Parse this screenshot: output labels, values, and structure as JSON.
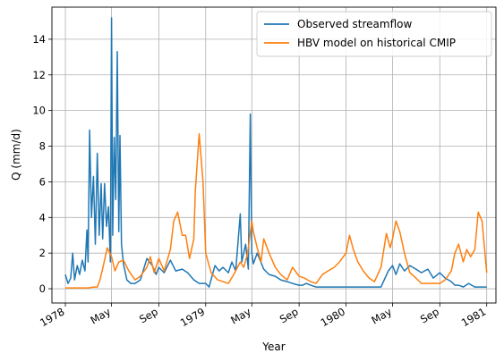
{
  "chart_data": {
    "type": "line",
    "xlabel": "Year",
    "ylabel": "Q (mm/d)",
    "xlim": [
      "1977-11-27",
      "1981-01-25"
    ],
    "ylim": [
      -0.8,
      15.8
    ],
    "grid": true,
    "legend_position": "top-right",
    "x_ticks": [
      {
        "date": "1978-01-01",
        "label": "1978"
      },
      {
        "date": "1978-05-01",
        "label": "May"
      },
      {
        "date": "1978-09-01",
        "label": "Sep"
      },
      {
        "date": "1979-01-01",
        "label": "1979"
      },
      {
        "date": "1979-05-01",
        "label": "May"
      },
      {
        "date": "1979-09-01",
        "label": "Sep"
      },
      {
        "date": "1980-01-01",
        "label": "1980"
      },
      {
        "date": "1980-05-01",
        "label": "May"
      },
      {
        "date": "1980-09-01",
        "label": "Sep"
      },
      {
        "date": "1981-01-01",
        "label": "1981"
      }
    ],
    "y_ticks": [
      {
        "value": 0,
        "label": "0"
      },
      {
        "value": 2,
        "label": "2"
      },
      {
        "value": 4,
        "label": "4"
      },
      {
        "value": 6,
        "label": "6"
      },
      {
        "value": 8,
        "label": "8"
      },
      {
        "value": 10,
        "label": "10"
      },
      {
        "value": 12,
        "label": "12"
      },
      {
        "value": 14,
        "label": "14"
      }
    ],
    "series": [
      {
        "name": "Observed streamflow",
        "color": "#1f77b4",
        "x": [
          "1978-01-01",
          "1978-01-08",
          "1978-01-15",
          "1978-01-20",
          "1978-01-25",
          "1978-02-01",
          "1978-02-07",
          "1978-02-14",
          "1978-02-21",
          "1978-02-26",
          "1978-03-01",
          "1978-03-05",
          "1978-03-10",
          "1978-03-15",
          "1978-03-20",
          "1978-03-25",
          "1978-03-30",
          "1978-04-04",
          "1978-04-08",
          "1978-04-13",
          "1978-04-18",
          "1978-04-23",
          "1978-04-28",
          "1978-05-01",
          "1978-05-04",
          "1978-05-08",
          "1978-05-12",
          "1978-05-16",
          "1978-05-20",
          "1978-05-23",
          "1978-05-27",
          "1978-06-01",
          "1978-06-10",
          "1978-06-20",
          "1978-07-01",
          "1978-07-15",
          "1978-08-01",
          "1978-08-15",
          "1978-08-25",
          "1978-09-01",
          "1978-09-15",
          "1978-10-01",
          "1978-10-15",
          "1978-11-01",
          "1978-11-15",
          "1978-12-01",
          "1978-12-15",
          "1979-01-01",
          "1979-01-10",
          "1979-01-25",
          "1979-02-05",
          "1979-02-15",
          "1979-03-01",
          "1979-03-10",
          "1979-03-20",
          "1979-04-01",
          "1979-04-05",
          "1979-04-15",
          "1979-04-22",
          "1979-04-27",
          "1979-05-01",
          "1979-05-05",
          "1979-05-15",
          "1979-06-01",
          "1979-06-15",
          "1979-07-01",
          "1979-07-15",
          "1979-08-01",
          "1979-08-15",
          "1979-09-01",
          "1979-09-10",
          "1979-09-20",
          "1979-10-01",
          "1979-10-15",
          "1979-11-01",
          "1979-11-15",
          "1979-12-01",
          "1980-01-01",
          "1980-02-01",
          "1980-03-01",
          "1980-04-01",
          "1980-04-20",
          "1980-05-01",
          "1980-05-10",
          "1980-05-20",
          "1980-06-01",
          "1980-06-15",
          "1980-07-01",
          "1980-07-15",
          "1980-08-01",
          "1980-08-15",
          "1980-09-01",
          "1980-09-15",
          "1980-10-01",
          "1980-10-10",
          "1980-10-20",
          "1980-11-01",
          "1980-11-15",
          "1980-12-01",
          "1980-12-15",
          "1981-01-01"
        ],
        "y": [
          0.8,
          0.3,
          0.6,
          2.0,
          0.5,
          1.3,
          0.8,
          1.6,
          1.0,
          3.3,
          1.5,
          8.9,
          4.0,
          6.3,
          2.5,
          7.6,
          3.0,
          5.9,
          2.8,
          5.9,
          3.5,
          4.6,
          1.5,
          15.2,
          3.0,
          8.5,
          5.0,
          13.3,
          3.2,
          8.6,
          2.5,
          1.4,
          0.5,
          0.3,
          0.3,
          0.5,
          1.7,
          1.3,
          0.8,
          1.2,
          0.9,
          1.6,
          1.0,
          1.1,
          0.9,
          0.5,
          0.3,
          0.3,
          0.1,
          1.3,
          1.0,
          1.2,
          0.9,
          1.5,
          1.0,
          4.2,
          1.5,
          2.5,
          1.1,
          9.8,
          2.0,
          1.4,
          2.0,
          1.1,
          0.8,
          0.7,
          0.5,
          0.4,
          0.3,
          0.2,
          0.2,
          0.3,
          0.2,
          0.1,
          0.1,
          0.1,
          0.1,
          0.1,
          0.1,
          0.1,
          0.1,
          1.0,
          1.3,
          0.8,
          1.4,
          1.0,
          1.3,
          1.1,
          0.9,
          1.1,
          0.6,
          0.9,
          0.6,
          0.4,
          0.2,
          0.2,
          0.1,
          0.3,
          0.1,
          0.1,
          0.1
        ]
      },
      {
        "name": "HBV model on historical CMIP",
        "color": "#ff7f0e",
        "x": [
          "1978-01-01",
          "1978-01-15",
          "1978-02-01",
          "1978-02-15",
          "1978-03-01",
          "1978-03-15",
          "1978-03-25",
          "1978-04-01",
          "1978-04-10",
          "1978-04-20",
          "1978-05-01",
          "1978-05-10",
          "1978-05-20",
          "1978-06-01",
          "1978-06-15",
          "1978-07-01",
          "1978-07-15",
          "1978-08-01",
          "1978-08-10",
          "1978-08-20",
          "1978-09-01",
          "1978-09-15",
          "1978-10-01",
          "1978-10-10",
          "1978-10-20",
          "1978-11-01",
          "1978-11-10",
          "1978-11-20",
          "1978-12-01",
          "1978-12-05",
          "1978-12-15",
          "1978-12-25",
          "1979-01-01",
          "1979-01-15",
          "1979-02-01",
          "1979-02-15",
          "1979-03-01",
          "1979-03-15",
          "1979-04-01",
          "1979-04-10",
          "1979-04-20",
          "1979-05-01",
          "1979-05-05",
          "1979-05-15",
          "1979-05-25",
          "1979-06-01",
          "1979-06-15",
          "1979-07-01",
          "1979-07-15",
          "1979-08-01",
          "1979-08-15",
          "1979-09-01",
          "1979-09-15",
          "1979-10-01",
          "1979-10-15",
          "1979-11-01",
          "1979-11-15",
          "1979-12-01",
          "1979-12-15",
          "1980-01-01",
          "1980-01-10",
          "1980-01-20",
          "1980-02-01",
          "1980-02-15",
          "1980-03-01",
          "1980-03-15",
          "1980-04-01",
          "1980-04-15",
          "1980-04-25",
          "1980-05-01",
          "1980-05-10",
          "1980-05-20",
          "1980-06-01",
          "1980-06-15",
          "1980-07-01",
          "1980-07-15",
          "1980-08-01",
          "1980-08-15",
          "1980-09-01",
          "1980-09-15",
          "1980-10-01",
          "1980-10-10",
          "1980-10-20",
          "1980-11-01",
          "1980-11-10",
          "1980-11-20",
          "1980-12-01",
          "1980-12-10",
          "1980-12-20",
          "1981-01-01"
        ],
        "y": [
          0.05,
          0.05,
          0.05,
          0.05,
          0.05,
          0.1,
          0.1,
          0.5,
          1.3,
          2.3,
          1.8,
          1.0,
          1.5,
          1.6,
          1.0,
          0.5,
          0.7,
          1.2,
          1.8,
          0.9,
          1.7,
          1.0,
          2.2,
          3.8,
          4.3,
          3.0,
          3.0,
          1.7,
          2.8,
          5.5,
          8.7,
          6.0,
          2.0,
          0.9,
          0.5,
          0.4,
          0.3,
          0.8,
          1.5,
          1.2,
          2.0,
          3.8,
          3.2,
          2.3,
          1.5,
          2.8,
          2.0,
          1.2,
          0.8,
          0.5,
          1.2,
          0.7,
          0.6,
          0.4,
          0.3,
          0.8,
          1.0,
          1.2,
          1.5,
          2.0,
          3.0,
          2.2,
          1.5,
          1.0,
          0.6,
          0.4,
          1.2,
          3.1,
          2.3,
          2.8,
          3.8,
          3.2,
          2.0,
          0.9,
          0.6,
          0.3,
          0.3,
          0.3,
          0.3,
          0.5,
          1.0,
          2.0,
          2.5,
          1.5,
          2.2,
          1.8,
          2.2,
          4.3,
          3.8,
          0.9
        ]
      }
    ]
  }
}
